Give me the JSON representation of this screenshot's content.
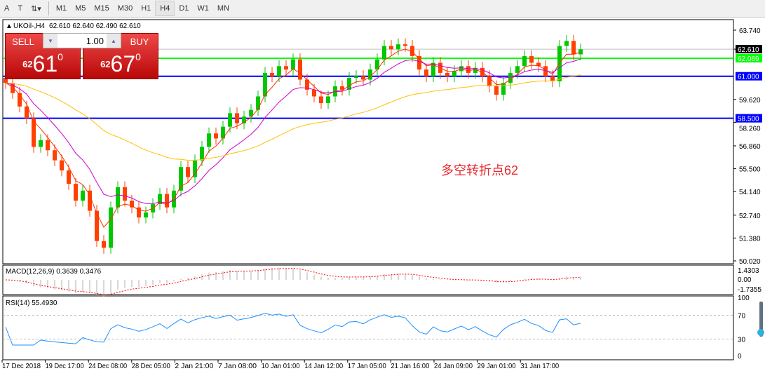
{
  "toolbar": {
    "items": [
      "A",
      "T",
      "M1",
      "M5",
      "M15",
      "M30",
      "H1",
      "H4",
      "D1",
      "W1",
      "MN"
    ],
    "active": "H4"
  },
  "header": {
    "title": "UKOil-,H4",
    "ohlc": "62.610 62.640 62.490 62.610"
  },
  "trade_panel": {
    "sell_label": "SELL",
    "buy_label": "BUY",
    "lot": "1.00",
    "sell_prefix": "62",
    "sell_big": "61",
    "sell_pip": "0",
    "buy_prefix": "62",
    "buy_big": "67",
    "buy_pip": "0"
  },
  "annotation": "多空转折点62",
  "macd": {
    "label": "MACD(12,26,9) 0.3639 0.3476",
    "ticks": [
      "1.4303",
      "0.00",
      "-1.7355"
    ]
  },
  "rsi": {
    "label": "RSI(14) 55.4930",
    "ticks": [
      "100",
      "70",
      "30",
      "0"
    ]
  },
  "colors": {
    "bull": "#00c800",
    "bear": "#ff4000",
    "ma_fast": "#ff3000",
    "ma_mid": "#d000d0",
    "ma_slow": "#ffc000",
    "line_green": "#00ff00",
    "line_blue": "#0000ff",
    "rsi": "#1e90ff",
    "macd_signal": "#ff0000"
  },
  "chart_data": {
    "type": "candlestick",
    "price_ticks": [
      "63.740",
      "62.610",
      "59.620",
      "58.260",
      "56.860",
      "55.500",
      "54.140",
      "52.740",
      "51.380",
      "50.020"
    ],
    "ylim": [
      50.02,
      63.74
    ],
    "time_labels": [
      "17 Dec 2018",
      "19 Dec 17:00",
      "24 Dec 08:00",
      "28 Dec 05:00",
      "2 Jan 21:00",
      "7 Jan 08:00",
      "10 Jan 01:00",
      "14 Jan 12:00",
      "17 Jan 05:00",
      "21 Jan 16:00",
      "24 Jan 09:00",
      "29 Jan 01:00",
      "31 Jan 17:00"
    ],
    "closes": [
      60.6,
      60.0,
      59.2,
      58.5,
      56.8,
      57.2,
      56.6,
      56.0,
      55.4,
      54.6,
      53.6,
      54.2,
      53.0,
      51.2,
      50.8,
      53.2,
      54.4,
      53.6,
      53.2,
      52.6,
      52.9,
      53.4,
      54.0,
      53.2,
      54.2,
      55.6,
      55.0,
      56.0,
      56.8,
      57.6,
      57.3,
      58.0,
      58.8,
      58.2,
      58.6,
      59.0,
      59.8,
      61.2,
      61.0,
      61.6,
      61.4,
      62.0,
      60.8,
      60.2,
      59.8,
      59.4,
      59.8,
      60.4,
      60.2,
      60.9,
      61.0,
      60.8,
      61.4,
      62.0,
      62.8,
      62.6,
      62.9,
      62.8,
      62.2,
      61.4,
      61.0,
      61.8,
      61.2,
      61.0,
      61.3,
      61.6,
      61.2,
      61.5,
      61.0,
      60.4,
      59.9,
      60.6,
      61.2,
      61.6,
      62.2,
      61.8,
      61.6,
      61.0,
      60.7,
      62.8,
      63.1,
      62.3,
      62.6
    ],
    "levels": [
      {
        "price": "62.069",
        "color": "green"
      },
      {
        "price": "61.000",
        "color": "blue"
      },
      {
        "price": "58.500",
        "color": "blue"
      }
    ],
    "current_price": "62.610"
  }
}
